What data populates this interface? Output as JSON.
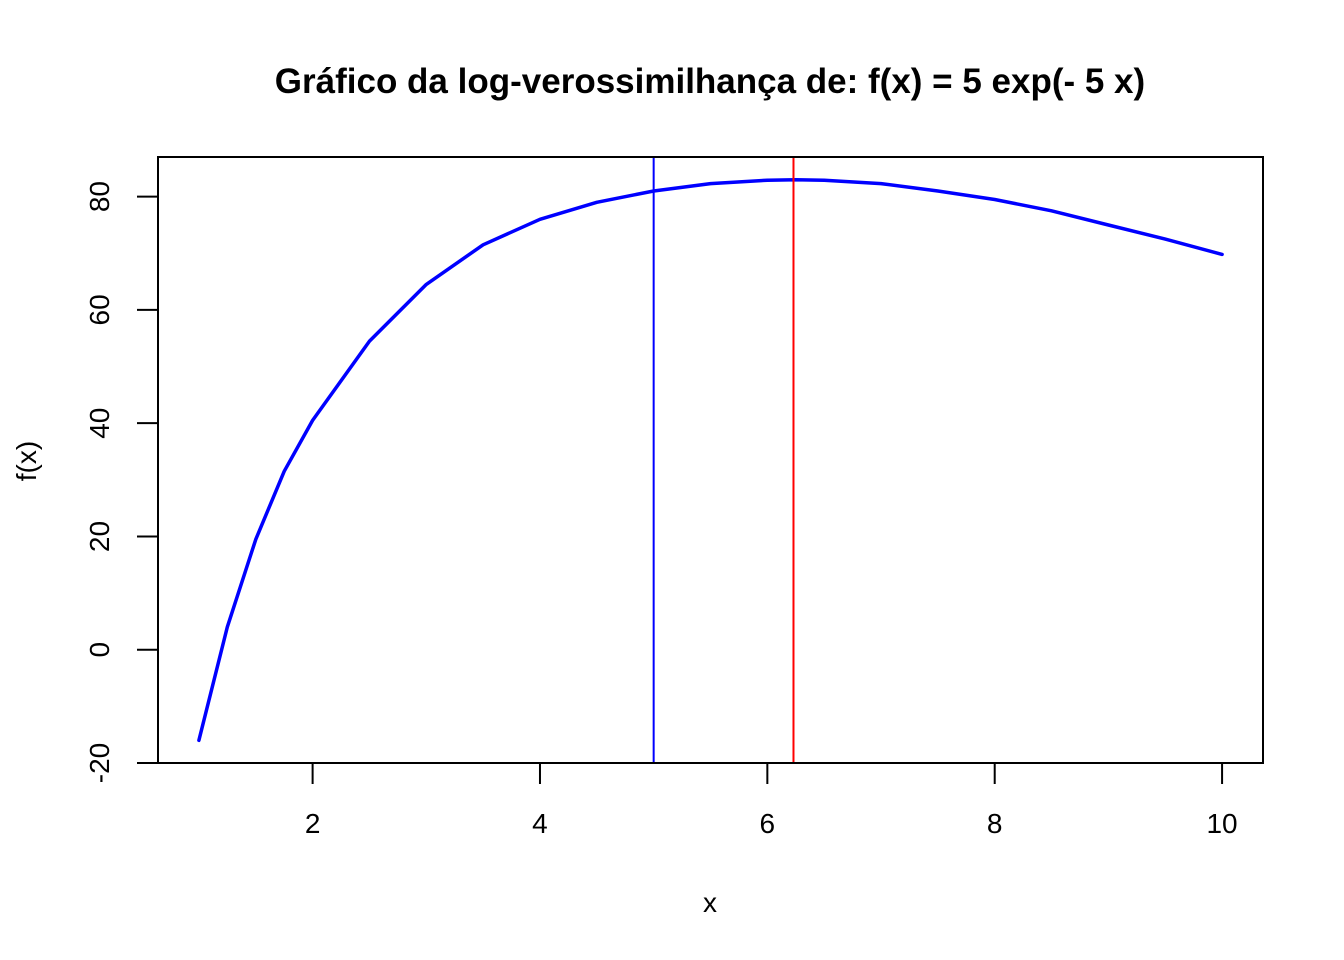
{
  "chart_data": {
    "type": "line",
    "title": "Gráfico da log-verossimilhança de: f(x) = 5 exp(- 5 x)",
    "xlabel": "x",
    "ylabel": "f(x)",
    "xlim": [
      0.64,
      10.36
    ],
    "ylim": [
      -20,
      87
    ],
    "x_ticks": [
      2,
      4,
      6,
      8,
      10
    ],
    "x_tick_labels": [
      "2",
      "4",
      "6",
      "8",
      "10"
    ],
    "y_ticks": [
      -20,
      0,
      20,
      40,
      60,
      80
    ],
    "y_tick_labels": [
      "-20",
      "0",
      "20",
      "40",
      "60",
      "80"
    ],
    "grid": false,
    "series": [
      {
        "color": "#0000ff",
        "x": [
          1.0,
          1.25,
          1.5,
          1.75,
          2.0,
          2.5,
          3.0,
          3.5,
          4.0,
          4.5,
          5.0,
          5.5,
          6.0,
          6.25,
          6.5,
          7.0,
          7.5,
          8.0,
          8.5,
          9.0,
          9.5,
          10.0
        ],
        "y": [
          -16.0,
          4.0,
          19.5,
          31.5,
          40.5,
          54.5,
          64.5,
          71.5,
          76.0,
          79.0,
          81.0,
          82.3,
          82.9,
          83.0,
          82.9,
          82.3,
          81.0,
          79.5,
          77.5,
          75.0,
          72.5,
          69.8
        ]
      }
    ],
    "vertical_lines": [
      {
        "x": 5.0,
        "color": "#0000ff"
      },
      {
        "x": 6.23,
        "color": "#ff0000"
      }
    ]
  }
}
